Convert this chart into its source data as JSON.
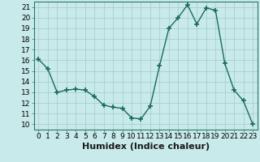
{
  "x": [
    0,
    1,
    2,
    3,
    4,
    5,
    6,
    7,
    8,
    9,
    10,
    11,
    12,
    13,
    14,
    15,
    16,
    17,
    18,
    19,
    20,
    21,
    22,
    23
  ],
  "y": [
    16.1,
    15.2,
    13.0,
    13.2,
    13.3,
    13.2,
    12.6,
    11.8,
    11.6,
    11.5,
    10.6,
    10.5,
    11.7,
    15.5,
    19.0,
    20.0,
    21.2,
    19.4,
    20.9,
    20.7,
    15.7,
    13.2,
    12.2,
    10.0
  ],
  "line_color": "#1a6b5a",
  "marker": "+",
  "marker_size": 4,
  "marker_lw": 1.2,
  "line_width": 1.0,
  "bg_color": "#c8eaea",
  "grid_color": "#aacece",
  "xlabel": "Humidex (Indice chaleur)",
  "ylim": [
    9.5,
    21.5
  ],
  "xlim": [
    -0.5,
    23.5
  ],
  "yticks": [
    10,
    11,
    12,
    13,
    14,
    15,
    16,
    17,
    18,
    19,
    20,
    21
  ],
  "xticks": [
    0,
    1,
    2,
    3,
    4,
    5,
    6,
    7,
    8,
    9,
    10,
    11,
    12,
    13,
    14,
    15,
    16,
    17,
    18,
    19,
    20,
    21,
    22,
    23
  ],
  "tick_label_fontsize": 6.5,
  "xlabel_fontsize": 8,
  "spine_color": "#2a7a6a"
}
